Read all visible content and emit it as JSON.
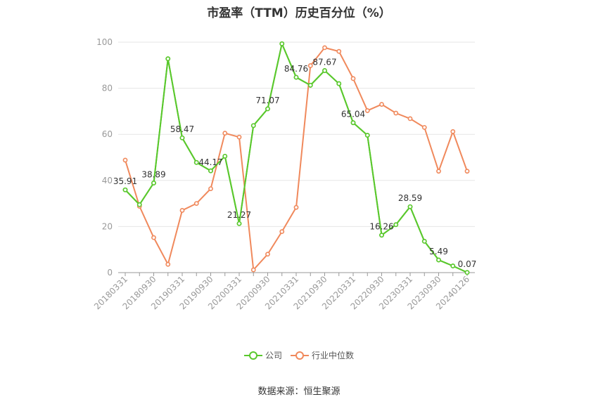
{
  "chart_data": {
    "type": "line",
    "title": "市盈率（TTM）历史百分位（%）",
    "source": "数据来源：恒生聚源",
    "ylim": [
      0,
      100
    ],
    "yticks": [
      0,
      20,
      40,
      60,
      80,
      100
    ],
    "grid": true,
    "legend_position": "bottom",
    "x_tick_labels": [
      "20180331",
      "20180930",
      "20190331",
      "20190930",
      "20200331",
      "20200930",
      "20210331",
      "20210930",
      "20220331",
      "20220930",
      "20230331",
      "20230930",
      "20240126"
    ],
    "series": [
      {
        "name": "公司",
        "color": "#5ac82d",
        "values": [
          35.91,
          29.5,
          38.89,
          92.8,
          58.47,
          47.8,
          44.17,
          50.5,
          21.27,
          63.8,
          71.07,
          99.3,
          84.76,
          81.3,
          87.67,
          82.0,
          65.04,
          59.6,
          16.26,
          20.8,
          28.59,
          13.6,
          5.49,
          2.9,
          0.07
        ],
        "labels": {
          "0": "35.91",
          "2": "38.89",
          "4": "58.47",
          "6": "44.17",
          "8": "21.27",
          "10": "71.07",
          "12": "84.76",
          "14": "87.67",
          "16": "65.04",
          "18": "16.26",
          "20": "28.59",
          "22": "5.49",
          "24": "0.07"
        }
      },
      {
        "name": "行业中位数",
        "color": "#f0895c",
        "values": [
          48.8,
          28.8,
          15.2,
          3.6,
          27.0,
          30.0,
          36.4,
          60.5,
          58.8,
          1.2,
          8.0,
          17.8,
          28.3,
          89.8,
          97.6,
          96.0,
          84.2,
          70.3,
          73.0,
          69.2,
          66.8,
          63.0,
          44.0,
          61.2,
          44.0
        ]
      }
    ]
  }
}
